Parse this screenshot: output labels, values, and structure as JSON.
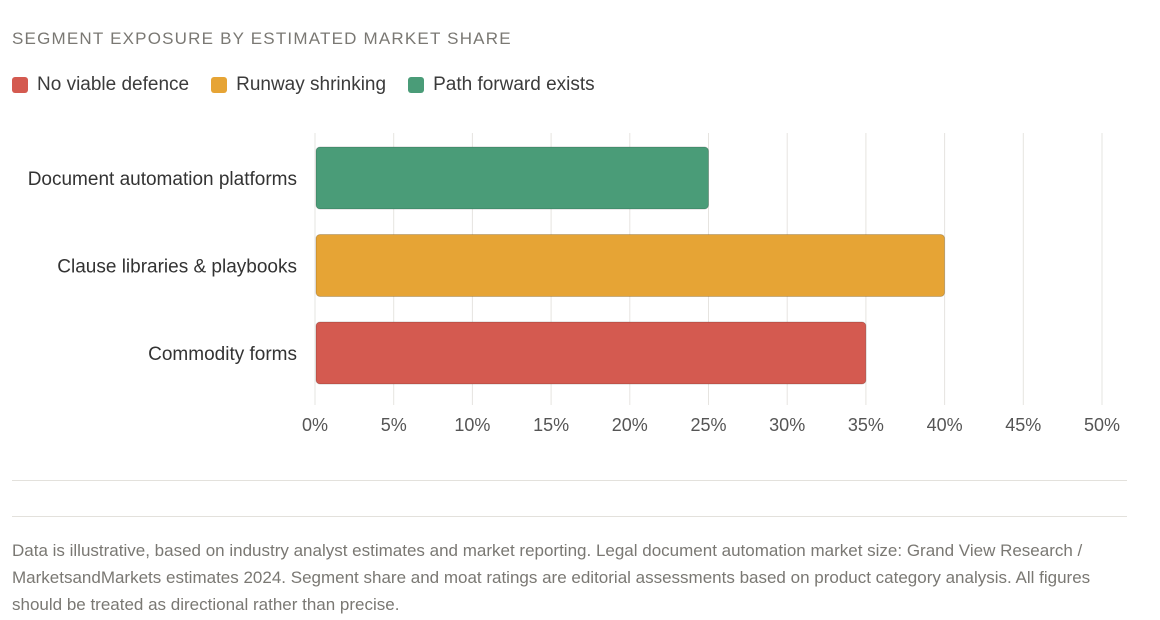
{
  "title": "SEGMENT EXPOSURE BY ESTIMATED MARKET SHARE",
  "legend": [
    {
      "label": "No viable defence",
      "color": "#d45a50"
    },
    {
      "label": "Runway shrinking",
      "color": "#e6a435"
    },
    {
      "label": "Path forward exists",
      "color": "#4a9c78"
    }
  ],
  "chart_data": {
    "type": "bar",
    "orientation": "horizontal",
    "categories": [
      "Document automation platforms",
      "Clause libraries & playbooks",
      "Commodity forms"
    ],
    "values": [
      25,
      40,
      35
    ],
    "colors": [
      "#4a9c78",
      "#e6a435",
      "#d45a50"
    ],
    "xlim": [
      0,
      50
    ],
    "xticks": [
      "0%",
      "5%",
      "10%",
      "15%",
      "20%",
      "25%",
      "30%",
      "35%",
      "40%",
      "45%",
      "50%"
    ],
    "grid": true,
    "legend_position": "top-left"
  },
  "footnote": "Data is illustrative, based on industry analyst estimates and market reporting. Legal document automation market size: Grand View Research / MarketsandMarkets estimates 2024. Segment share and moat ratings are editorial assessments based on product category analysis. All figures should be treated as directional rather than precise."
}
